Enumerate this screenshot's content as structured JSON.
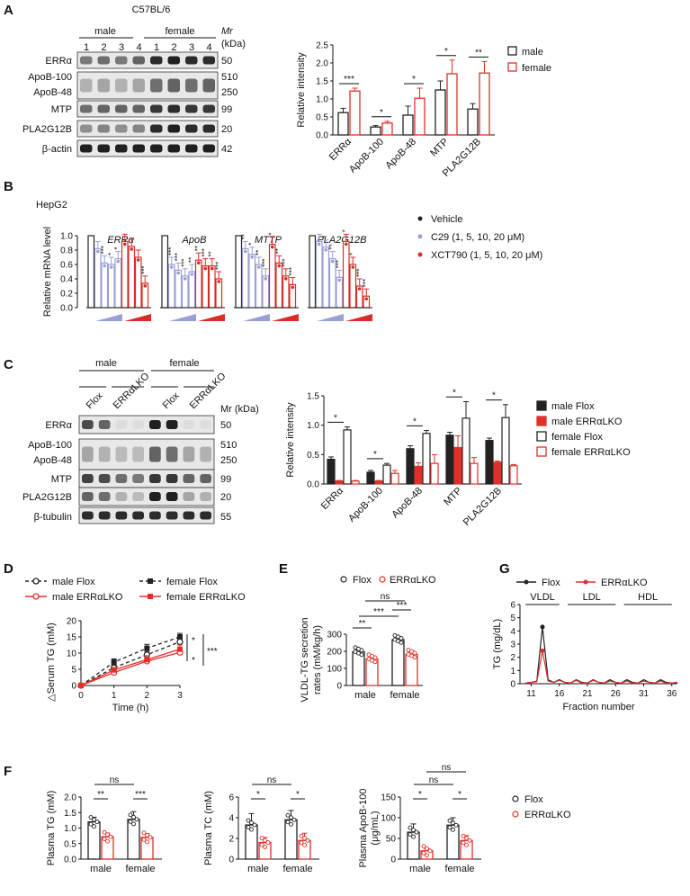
{
  "colors": {
    "male": "#222222",
    "female": "#e0302a",
    "vehicle": "#222222",
    "c29": "#9aa0d6",
    "xct": "#d92d27",
    "flox": "#222222",
    "lko": "#e0302a"
  },
  "panelA": {
    "label": "A",
    "strain": "C57BL/6",
    "groups": [
      "male",
      "female"
    ],
    "lanes": [
      "1",
      "2",
      "3",
      "4",
      "1",
      "2",
      "3",
      "4"
    ],
    "mr_label": "Mr",
    "kda_label": "(kDa)",
    "blots": [
      {
        "name": "ERRα",
        "mw": [
          "50"
        ]
      },
      {
        "name": "ApoB-100 / ApoB-48",
        "names": [
          "ApoB-100",
          "ApoB-48"
        ],
        "mw": [
          "510",
          "250"
        ]
      },
      {
        "name": "MTP",
        "mw": [
          "99"
        ]
      },
      {
        "name": "PLA2G12B",
        "mw": [
          "20"
        ]
      },
      {
        "name": "β-actin",
        "mw": [
          "42"
        ]
      }
    ],
    "chart_data": {
      "type": "bar",
      "ylabel": "Relative intensity",
      "ylim": [
        0,
        2.5
      ],
      "yticks": [
        "0.0",
        "0.5",
        "1.0",
        "1.5",
        "2.0",
        "2.5"
      ],
      "categories": [
        "ERRα",
        "ApoB-100",
        "ApoB-48",
        "MTP",
        "PLA2G12B"
      ],
      "series": [
        {
          "name": "male",
          "values": [
            0.62,
            0.22,
            0.55,
            1.25,
            0.72
          ],
          "err": [
            0.12,
            0.04,
            0.25,
            0.25,
            0.15
          ]
        },
        {
          "name": "female",
          "values": [
            1.22,
            0.33,
            1.02,
            1.7,
            1.72
          ],
          "err": [
            0.08,
            0.05,
            0.28,
            0.38,
            0.32
          ]
        }
      ],
      "sig": [
        "***",
        "*",
        "*",
        "*",
        "**"
      ]
    }
  },
  "panelB": {
    "label": "B",
    "cell": "HepG2",
    "chart_data": {
      "type": "bar",
      "ylabel": "Relative mRNA level",
      "ylim": [
        0,
        1.0
      ],
      "yticks": [
        "0.0",
        "0.2",
        "0.4",
        "0.6",
        "0.8",
        "1.0"
      ],
      "genes": [
        "ERRα",
        "ApoB",
        "MTTP",
        "PLA2G12B"
      ],
      "series": [
        {
          "name": "Vehicle"
        },
        {
          "name": "C29 (1, 5, 10, 20 μM)"
        },
        {
          "name": "XCT790 (1, 5, 10, 20 μM)"
        }
      ],
      "values": [
        {
          "vehicle": 1.0,
          "c29": [
            0.82,
            0.62,
            0.6,
            0.68
          ],
          "xct": [
            0.92,
            0.85,
            0.7,
            0.34
          ]
        },
        {
          "vehicle": 1.0,
          "c29": [
            0.6,
            0.52,
            0.44,
            0.5
          ],
          "xct": [
            0.66,
            0.58,
            0.58,
            0.4
          ]
        },
        {
          "vehicle": 1.0,
          "c29": [
            0.82,
            0.74,
            0.6,
            0.44
          ],
          "xct": [
            0.88,
            0.62,
            0.44,
            0.32
          ]
        },
        {
          "vehicle": 1.0,
          "c29": [
            0.92,
            0.84,
            0.68,
            0.42
          ],
          "xct": [
            0.92,
            0.6,
            0.3,
            0.16
          ]
        }
      ],
      "sig": [
        {
          "c29": [
            "",
            "***",
            "*",
            "*"
          ],
          "xct": [
            "",
            "",
            "",
            "***"
          ]
        },
        {
          "c29": [
            "***",
            "***",
            "***",
            "**"
          ],
          "xct": [
            "**",
            "***",
            "**",
            "***"
          ]
        },
        {
          "c29": [
            "**",
            "*",
            "**",
            "***"
          ],
          "xct": [
            "*",
            "**",
            "***",
            "***"
          ]
        },
        {
          "c29": [
            "",
            "*",
            "**",
            "***"
          ],
          "xct": [
            "*",
            "*",
            "***",
            "***"
          ]
        }
      ]
    }
  },
  "panelC": {
    "label": "C",
    "groups": [
      "male",
      "female"
    ],
    "genotypes": [
      "Flox",
      "ERRαLKO",
      "Flox",
      "ERRαLKO"
    ],
    "mr_label": "Mr (kDa)",
    "blots": [
      {
        "names": [
          "ERRα"
        ],
        "mw": [
          "50"
        ]
      },
      {
        "names": [
          "ApoB-100",
          "ApoB-48"
        ],
        "mw": [
          "510",
          "250"
        ]
      },
      {
        "names": [
          "MTP"
        ],
        "mw": [
          "99"
        ]
      },
      {
        "names": [
          "PLA2G12B"
        ],
        "mw": [
          "20"
        ]
      },
      {
        "names": [
          "β-tubulin"
        ],
        "mw": [
          "55"
        ]
      }
    ],
    "chart_data": {
      "type": "bar",
      "ylabel": "Relative intensity",
      "ylim": [
        0,
        1.5
      ],
      "yticks": [
        "0.0",
        "0.5",
        "1.0",
        "1.5"
      ],
      "categories": [
        "ERRα",
        "ApoB-100",
        "ApoB-48",
        "MTP",
        "PLA2G12B"
      ],
      "series": [
        {
          "name": "male Flox",
          "values": [
            0.42,
            0.2,
            0.6,
            0.83,
            0.74
          ],
          "err": [
            0.04,
            0.03,
            0.05,
            0.05,
            0.04
          ]
        },
        {
          "name": "male ERRαLKO",
          "values": [
            0.05,
            0.05,
            0.3,
            0.62,
            0.37
          ],
          "err": [
            0.01,
            0.01,
            0.06,
            0.2,
            0.02
          ]
        },
        {
          "name": "female Flox",
          "values": [
            0.92,
            0.32,
            0.86,
            1.12,
            1.13
          ],
          "err": [
            0.05,
            0.03,
            0.05,
            0.28,
            0.22
          ]
        },
        {
          "name": "female ERRαLKO",
          "values": [
            0.05,
            0.18,
            0.35,
            0.35,
            0.31
          ],
          "err": [
            0.01,
            0.05,
            0.15,
            0.1,
            0.02
          ]
        }
      ]
    }
  },
  "panelD": {
    "label": "D",
    "chart_data": {
      "type": "line",
      "ylabel": "△Serum TG (mM)",
      "xlabel": "Time (h)",
      "ylim": [
        0,
        20
      ],
      "yticks": [
        "0",
        "5",
        "10",
        "15",
        "20"
      ],
      "x": [
        0,
        1,
        2,
        3
      ],
      "series": [
        {
          "name": "male Flox",
          "values": [
            0,
            5.5,
            9.5,
            13.5
          ],
          "err": [
            0,
            0.8,
            1.0,
            1.2
          ]
        },
        {
          "name": "male ERRαLKO",
          "values": [
            0,
            4.0,
            7.5,
            10.2
          ],
          "err": [
            0,
            0.6,
            1.2,
            1.4
          ]
        },
        {
          "name": "female Flox",
          "values": [
            0,
            7.2,
            11.5,
            15.0
          ],
          "err": [
            0,
            1.0,
            1.2,
            1.1
          ]
        },
        {
          "name": "female ERRαLKO",
          "values": [
            0,
            4.8,
            8.0,
            11.2
          ],
          "err": [
            0,
            0.7,
            1.2,
            1.3
          ]
        }
      ],
      "sig": [
        "*",
        "*",
        "***"
      ]
    }
  },
  "panelE": {
    "label": "E",
    "chart_data": {
      "type": "bar",
      "ylabel": "VLDL-TG secretion rates (mM/kg/h)",
      "ylabel_lines": [
        "VLDL-TG secretion",
        "rates (mM/kg/h)"
      ],
      "ylim": [
        0,
        300
      ],
      "yticks": [
        "0",
        "100",
        "200",
        "300"
      ],
      "categories": [
        "male",
        "female"
      ],
      "series": [
        {
          "name": "Flox",
          "values": [
            197,
            268
          ],
          "err": [
            15,
            18
          ]
        },
        {
          "name": "ERRαLKO",
          "values": [
            155,
            182
          ],
          "err": [
            8,
            20
          ]
        }
      ],
      "sig": [
        "**",
        "***",
        "***",
        "ns"
      ]
    }
  },
  "panelG": {
    "label": "G",
    "chart_data": {
      "type": "line",
      "ylabel": "TG (mg/dL)",
      "xlabel": "Fraction number",
      "ylim": [
        0,
        6
      ],
      "yticks": [
        "0",
        "1",
        "2",
        "3",
        "4",
        "5",
        "6"
      ],
      "xticks": [
        "11",
        "16",
        "21",
        "26",
        "31",
        "36"
      ],
      "x": [
        10,
        11,
        12,
        13,
        14,
        15,
        16,
        17,
        18,
        19,
        20,
        21,
        22,
        23,
        24,
        25,
        26,
        27,
        28,
        29,
        30,
        31,
        32,
        33,
        34,
        35,
        36,
        37
      ],
      "series": [
        {
          "name": "Flox",
          "values": [
            0.05,
            0.1,
            0.2,
            4.3,
            0.3,
            0.1,
            0.3,
            0.1,
            0.05,
            0.3,
            0.1,
            0.05,
            0.3,
            0.1,
            0.05,
            0.3,
            0.1,
            0.05,
            0.3,
            0.1,
            0.05,
            0.3,
            0.1,
            0.05,
            0.3,
            0.1,
            0.05,
            0.1
          ]
        },
        {
          "name": "ERRαLKO",
          "values": [
            0.05,
            0.1,
            0.15,
            2.5,
            0.2,
            0.1,
            0.25,
            0.1,
            0.05,
            0.25,
            0.05,
            0.05,
            0.25,
            0.1,
            0.05,
            0.2,
            0.1,
            0.05,
            0.2,
            0.05,
            0.05,
            0.2,
            0.1,
            0.05,
            0.2,
            0.05,
            0.05,
            0.1
          ]
        }
      ],
      "regions": [
        "VLDL",
        "LDL",
        "HDL"
      ]
    }
  },
  "panelF": {
    "label": "F",
    "legend": [
      "Flox",
      "ERRαLKO"
    ],
    "charts": [
      {
        "ylabel": "Plasma TG (mM)",
        "ylim": [
          0,
          2.0
        ],
        "yticks": [
          "0.0",
          "0.5",
          "1.0",
          "1.5",
          "2.0"
        ],
        "categories": [
          "male",
          "female"
        ],
        "values": {
          "flox": [
            1.2,
            1.28
          ],
          "lko": [
            0.72,
            0.7
          ]
        },
        "err": {
          "flox": [
            0.15,
            0.25
          ],
          "lko": [
            0.12,
            0.12
          ]
        },
        "sig": [
          "**",
          "***",
          "ns"
        ]
      },
      {
        "ylabel": "Plasma TC (mM)",
        "ylim": [
          0,
          6
        ],
        "yticks": [
          "0",
          "2",
          "4",
          "6"
        ],
        "categories": [
          "male",
          "female"
        ],
        "values": {
          "flox": [
            3.3,
            3.8
          ],
          "lko": [
            1.6,
            1.8
          ]
        },
        "err": {
          "flox": [
            1.1,
            0.9
          ],
          "lko": [
            0.5,
            0.7
          ]
        },
        "sig": [
          "*",
          "*",
          "ns"
        ]
      },
      {
        "ylabel": "Plasma ApoB-100 (μg/mL)",
        "ylabel_lines": [
          "Plasma ApoB-100",
          "(μg/mL)"
        ],
        "ylim": [
          0,
          150
        ],
        "yticks": [
          "0",
          "50",
          "100",
          "150"
        ],
        "categories": [
          "male",
          "female"
        ],
        "values": {
          "flox": [
            65,
            82
          ],
          "lko": [
            20,
            45
          ]
        },
        "err": {
          "flox": [
            20,
            18
          ],
          "lko": [
            5,
            12
          ]
        },
        "sig": [
          "*",
          "*",
          "ns",
          "ns"
        ]
      }
    ]
  }
}
